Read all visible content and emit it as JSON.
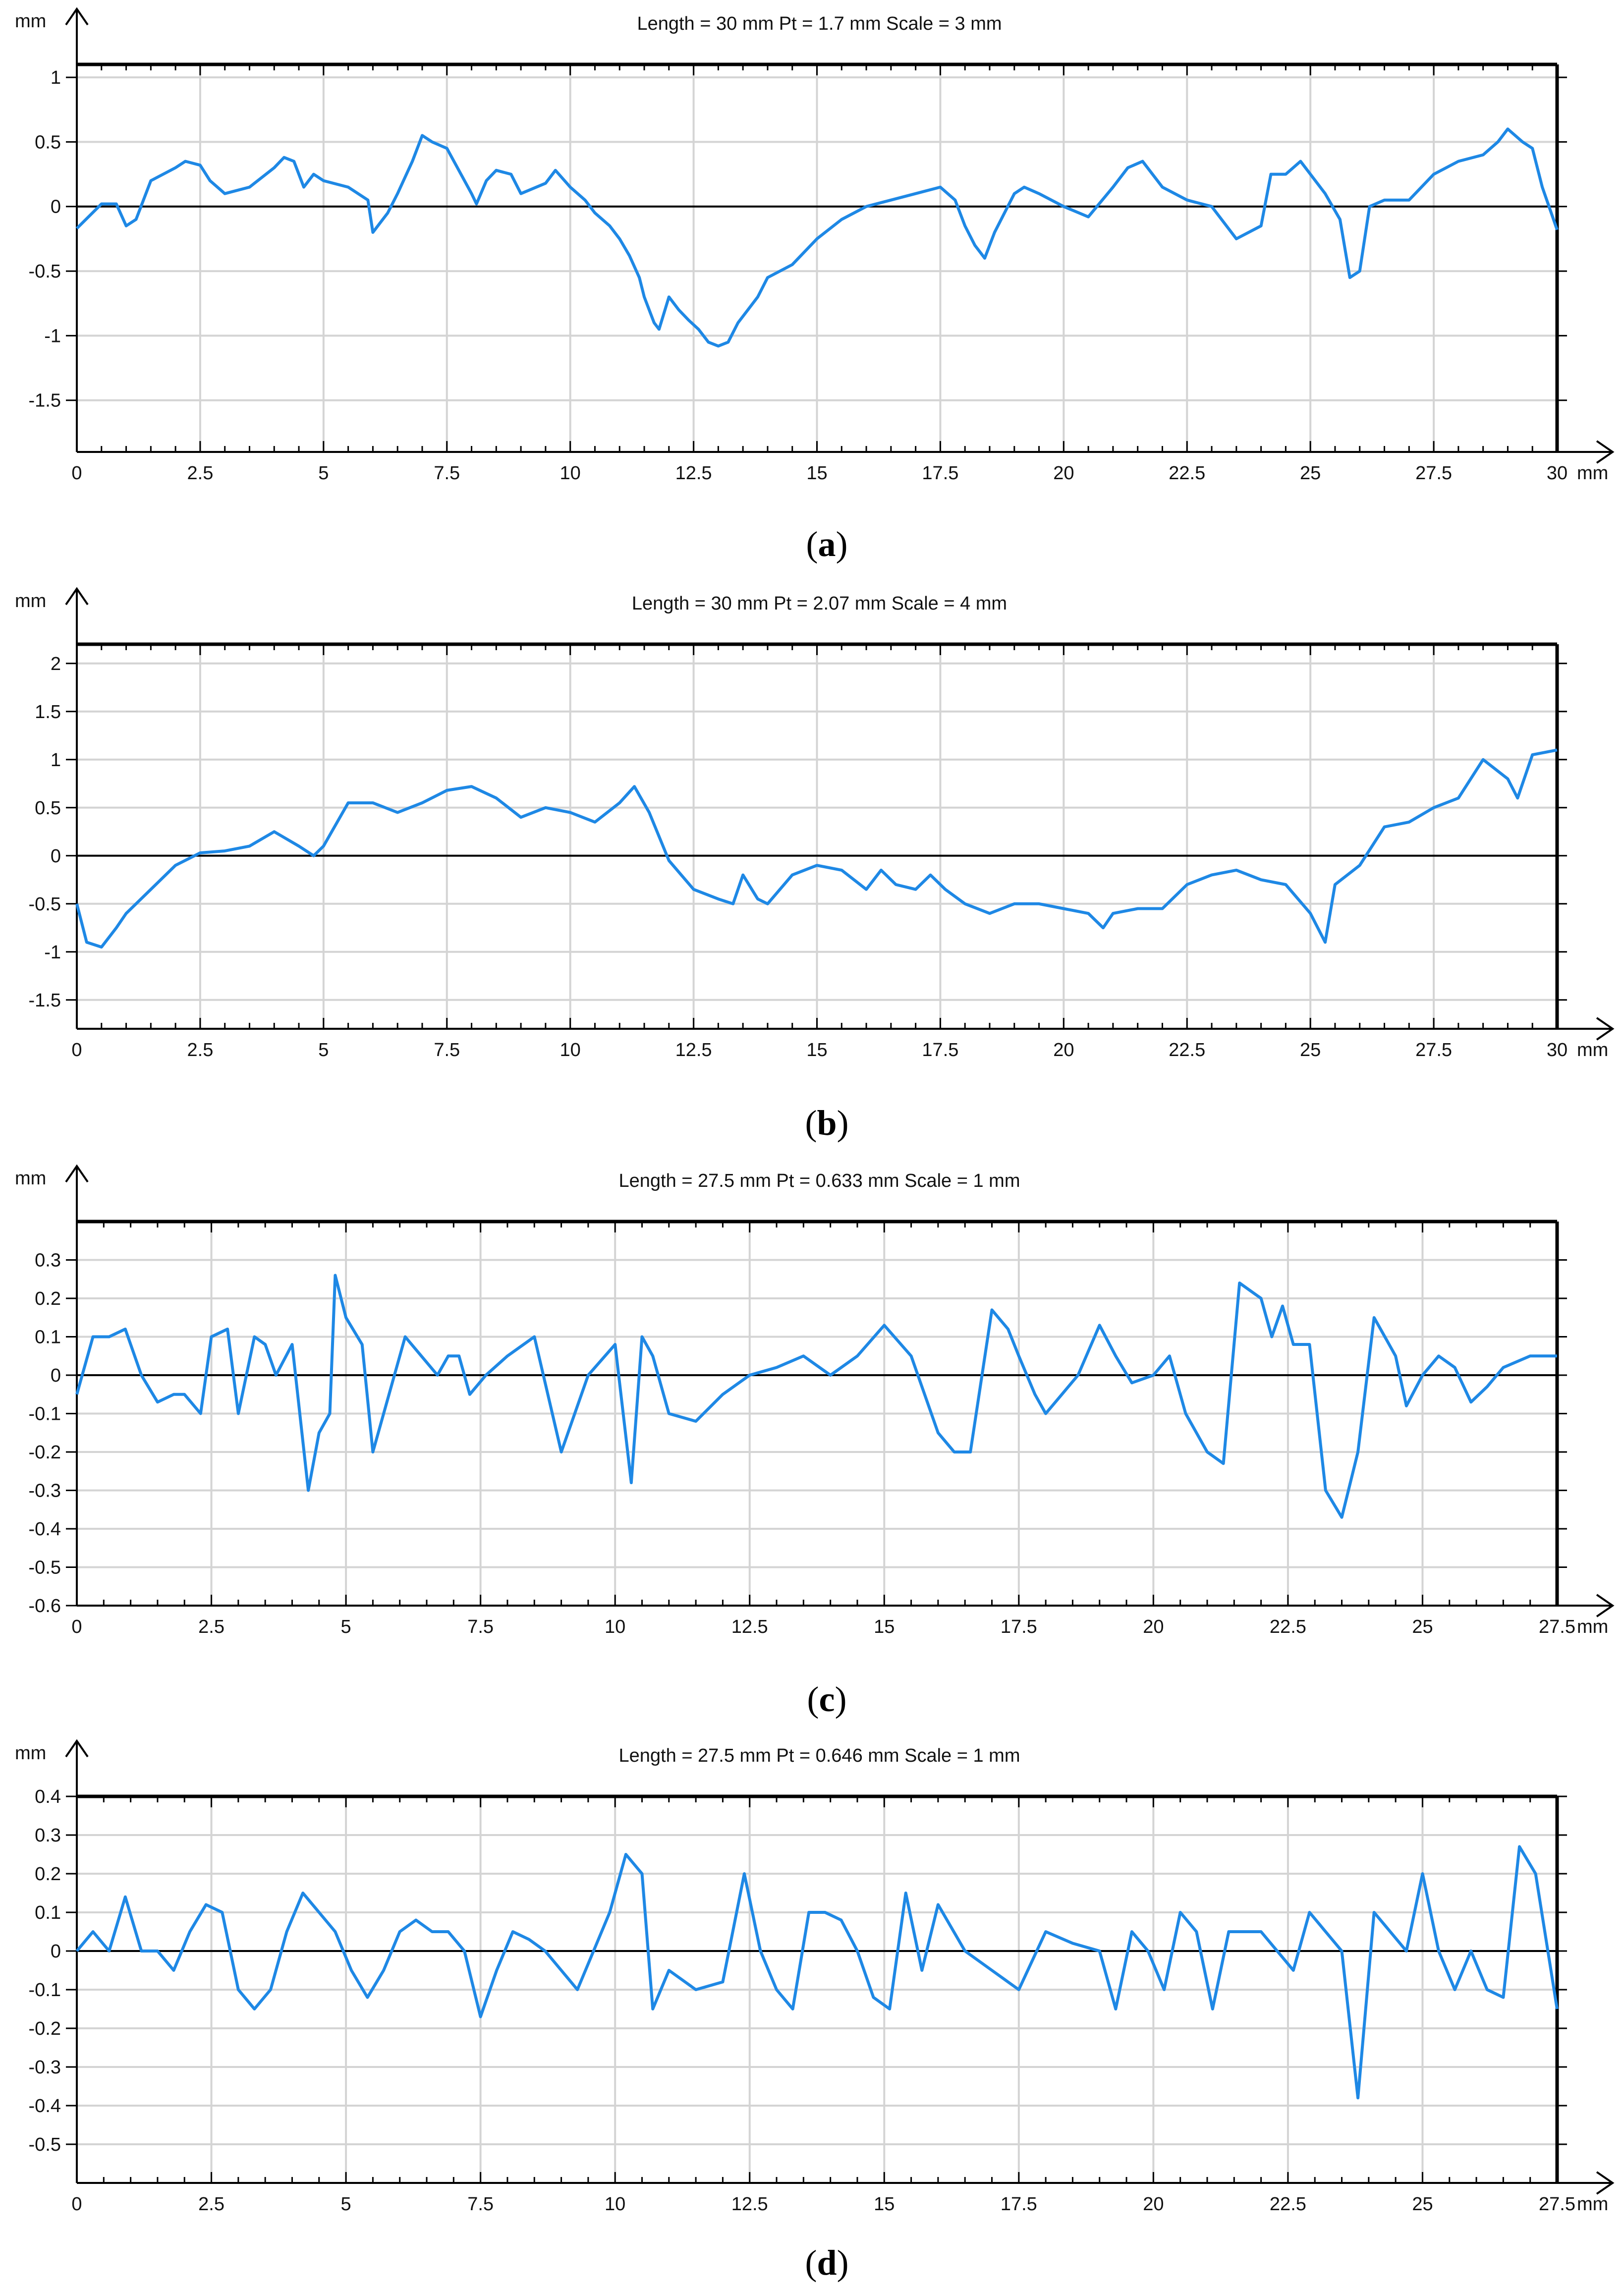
{
  "chart_data": [
    {
      "type": "line",
      "title": "Length = 30 mm  Pt = 1.7 mm  Scale = 3 mm",
      "caption_open": "(",
      "caption": "a",
      "caption_close": ")",
      "xlabel": "mm",
      "ylabel": "mm",
      "xlim": [
        0,
        30
      ],
      "ylim": [
        -1.9,
        1.1
      ],
      "xticks": [
        "0",
        "2.5",
        "5",
        "7.5",
        "10",
        "12.5",
        "15",
        "17.5",
        "20",
        "22.5",
        "25",
        "27.5",
        "30"
      ],
      "yticks": [
        "1",
        "0.5",
        "0",
        "-0.5",
        "-1",
        "-1.5"
      ],
      "ytick_values": [
        1,
        0.5,
        0,
        -0.5,
        -1,
        -1.5
      ],
      "grid": true,
      "line_color": "#1e88e5",
      "series": [
        {
          "x": [
            0,
            0.5,
            0.8,
            1.0,
            1.2,
            1.5,
            2.0,
            2.2,
            2.5,
            2.7,
            3.0,
            3.5,
            4.0,
            4.2,
            4.4,
            4.6,
            4.8,
            5.0,
            5.5,
            5.9,
            6.0,
            6.1,
            6.3,
            6.5,
            6.8,
            7.0,
            7.2,
            7.5,
            8.0,
            8.1,
            8.3,
            8.5,
            8.8,
            9.0,
            9.5,
            9.7,
            10.0,
            10.3,
            10.5,
            10.8,
            11.0,
            11.2,
            11.4,
            11.5,
            11.7,
            11.8,
            12.0,
            12.2,
            12.4,
            12.6,
            12.8,
            13.0,
            13.2,
            13.4,
            13.6,
            13.8,
            14.0,
            14.5,
            15.0,
            15.5,
            16.0,
            16.5,
            17.0,
            17.5,
            17.8,
            18.0,
            18.2,
            18.4,
            18.6,
            19.0,
            19.2,
            19.5,
            20.0,
            20.5,
            21.0,
            21.3,
            21.6,
            22.0,
            22.5,
            23.0,
            23.5,
            24.0,
            24.2,
            24.5,
            24.8,
            25.0,
            25.3,
            25.6,
            25.8,
            26.0,
            26.2,
            26.5,
            27.0,
            27.5,
            28.0,
            28.5,
            28.8,
            29.0,
            29.3,
            29.5,
            29.7,
            30.0
          ],
          "y": [
            -0.17,
            0.02,
            0.02,
            -0.15,
            -0.1,
            0.2,
            0.3,
            0.35,
            0.32,
            0.2,
            0.1,
            0.15,
            0.3,
            0.38,
            0.35,
            0.15,
            0.25,
            0.2,
            0.15,
            0.05,
            -0.2,
            -0.15,
            -0.05,
            0.1,
            0.35,
            0.55,
            0.5,
            0.45,
            0.1,
            0.02,
            0.2,
            0.28,
            0.25,
            0.1,
            0.18,
            0.28,
            0.15,
            0.05,
            -0.05,
            -0.15,
            -0.25,
            -0.38,
            -0.55,
            -0.7,
            -0.9,
            -0.95,
            -0.7,
            -0.8,
            -0.88,
            -0.95,
            -1.05,
            -1.08,
            -1.05,
            -0.9,
            -0.8,
            -0.7,
            -0.55,
            -0.45,
            -0.25,
            -0.1,
            0.0,
            0.05,
            0.1,
            0.15,
            0.05,
            -0.15,
            -0.3,
            -0.4,
            -0.2,
            0.1,
            0.15,
            0.1,
            0.0,
            -0.08,
            0.15,
            0.3,
            0.35,
            0.15,
            0.05,
            0.0,
            -0.25,
            -0.15,
            0.25,
            0.25,
            0.35,
            0.25,
            0.1,
            -0.1,
            -0.55,
            -0.5,
            0.0,
            0.05,
            0.05,
            0.25,
            0.35,
            0.4,
            0.5,
            0.6,
            0.5,
            0.45,
            0.15,
            -0.18
          ]
        }
      ]
    },
    {
      "type": "line",
      "title": "Length = 30 mm  Pt = 2.07 mm  Scale = 4 mm",
      "caption_open": "(",
      "caption": "b",
      "caption_close": ")",
      "xlabel": "mm",
      "ylabel": "mm",
      "xlim": [
        0,
        30
      ],
      "ylim": [
        -1.8,
        2.2
      ],
      "xticks": [
        "0",
        "2.5",
        "5",
        "7.5",
        "10",
        "12.5",
        "15",
        "17.5",
        "20",
        "22.5",
        "25",
        "27.5",
        "30"
      ],
      "yticks": [
        "2",
        "1.5",
        "1",
        "0.5",
        "0",
        "-0.5",
        "-1",
        "-1.5"
      ],
      "ytick_values": [
        2,
        1.5,
        1,
        0.5,
        0,
        -0.5,
        -1,
        -1.5
      ],
      "grid": true,
      "line_color": "#1e88e5",
      "series": [
        {
          "x": [
            0,
            0.2,
            0.5,
            0.8,
            1.0,
            1.5,
            2.0,
            2.5,
            3.0,
            3.5,
            4.0,
            4.5,
            4.8,
            5.0,
            5.5,
            6.0,
            6.5,
            7.0,
            7.5,
            8.0,
            8.5,
            9.0,
            9.5,
            10.0,
            10.5,
            11.0,
            11.3,
            11.6,
            12.0,
            12.5,
            13.0,
            13.3,
            13.5,
            13.8,
            14.0,
            14.5,
            15.0,
            15.5,
            16.0,
            16.3,
            16.6,
            17.0,
            17.3,
            17.6,
            18.0,
            18.5,
            19.0,
            19.5,
            20.0,
            20.5,
            20.8,
            21.0,
            21.5,
            22.0,
            22.5,
            23.0,
            23.5,
            24.0,
            24.5,
            25.0,
            25.3,
            25.5,
            26.0,
            26.5,
            27.0,
            27.5,
            28.0,
            28.5,
            29.0,
            29.2,
            29.5,
            30.0
          ],
          "y": [
            -0.5,
            -0.9,
            -0.95,
            -0.75,
            -0.6,
            -0.35,
            -0.1,
            0.03,
            0.05,
            0.1,
            0.25,
            0.1,
            0.0,
            0.1,
            0.55,
            0.55,
            0.45,
            0.55,
            0.68,
            0.72,
            0.6,
            0.4,
            0.5,
            0.45,
            0.35,
            0.55,
            0.72,
            0.45,
            -0.05,
            -0.35,
            -0.45,
            -0.5,
            -0.2,
            -0.45,
            -0.5,
            -0.2,
            -0.1,
            -0.15,
            -0.35,
            -0.15,
            -0.3,
            -0.35,
            -0.2,
            -0.35,
            -0.5,
            -0.6,
            -0.5,
            -0.5,
            -0.55,
            -0.6,
            -0.75,
            -0.6,
            -0.55,
            -0.55,
            -0.3,
            -0.2,
            -0.15,
            -0.25,
            -0.3,
            -0.6,
            -0.9,
            -0.3,
            -0.1,
            0.3,
            0.35,
            0.5,
            0.6,
            1.0,
            0.8,
            0.6,
            1.05,
            1.1
          ]
        }
      ]
    },
    {
      "type": "line",
      "title": "Length = 27.5 mm  Pt = 0.633 mm  Scale = 1 mm",
      "caption_open": "(",
      "caption": "c",
      "caption_close": ")",
      "xlabel": "mm",
      "ylabel": "mm",
      "xlim": [
        0,
        27.5
      ],
      "ylim": [
        -0.6,
        0.4
      ],
      "xticks": [
        "0",
        "2.5",
        "5",
        "7.5",
        "10",
        "12.5",
        "15",
        "17.5",
        "20",
        "22.5",
        "25",
        "27.5"
      ],
      "yticks": [
        "0.3",
        "0.2",
        "0.1",
        "0",
        "-0.1",
        "-0.2",
        "-0.3",
        "-0.4",
        "-0.5",
        "-0.6"
      ],
      "ytick_values": [
        0.3,
        0.2,
        0.1,
        0,
        -0.1,
        -0.2,
        -0.3,
        -0.4,
        -0.5,
        -0.6
      ],
      "grid": true,
      "line_color": "#1e88e5",
      "series": [
        {
          "x": [
            0,
            0.3,
            0.6,
            0.9,
            1.2,
            1.5,
            1.8,
            2.0,
            2.3,
            2.5,
            2.8,
            3.0,
            3.3,
            3.5,
            3.7,
            4.0,
            4.3,
            4.5,
            4.7,
            4.8,
            5.0,
            5.3,
            5.5,
            5.8,
            6.1,
            6.4,
            6.7,
            6.9,
            7.1,
            7.3,
            7.6,
            8.0,
            8.5,
            9.0,
            9.5,
            10.0,
            10.3,
            10.5,
            10.7,
            11.0,
            11.5,
            12.0,
            12.5,
            13.0,
            13.5,
            14.0,
            14.5,
            15.0,
            15.5,
            16.0,
            16.3,
            16.6,
            17.0,
            17.3,
            17.5,
            17.8,
            18.0,
            18.3,
            18.6,
            19.0,
            19.3,
            19.6,
            20.0,
            20.3,
            20.6,
            21.0,
            21.3,
            21.6,
            22.0,
            22.2,
            22.4,
            22.6,
            22.9,
            23.2,
            23.5,
            23.8,
            24.1,
            24.3,
            24.5,
            24.7,
            25.0,
            25.3,
            25.6,
            25.9,
            26.2,
            26.5,
            27.0,
            27.5
          ],
          "y": [
            -0.05,
            0.1,
            0.1,
            0.12,
            0.0,
            -0.07,
            -0.05,
            -0.05,
            -0.1,
            0.1,
            0.12,
            -0.1,
            0.1,
            0.08,
            0.0,
            0.08,
            -0.3,
            -0.15,
            -0.1,
            0.26,
            0.15,
            0.08,
            -0.2,
            -0.05,
            0.1,
            0.05,
            0.0,
            0.05,
            0.05,
            -0.05,
            0.0,
            0.05,
            0.1,
            -0.2,
            0.0,
            0.08,
            -0.28,
            0.1,
            0.05,
            -0.1,
            -0.12,
            -0.05,
            0.0,
            0.02,
            0.05,
            0.0,
            0.05,
            0.13,
            0.05,
            -0.15,
            -0.2,
            -0.2,
            0.17,
            0.12,
            0.05,
            -0.05,
            -0.1,
            -0.05,
            0.0,
            0.13,
            0.05,
            -0.02,
            0.0,
            0.05,
            -0.1,
            -0.2,
            -0.23,
            0.24,
            0.2,
            0.1,
            0.18,
            0.08,
            0.08,
            -0.3,
            -0.37,
            -0.2,
            0.15,
            0.1,
            0.05,
            -0.08,
            0.0,
            0.05,
            0.02,
            -0.07,
            -0.03,
            0.02,
            0.05,
            0.05
          ]
        }
      ]
    },
    {
      "type": "line",
      "title": "Length = 27.5 mm  Pt = 0.646 mm  Scale = 1 mm",
      "caption_open": "(",
      "caption": "d",
      "caption_close": ")",
      "xlabel": "mm",
      "ylabel": "mm",
      "xlim": [
        0,
        27.5
      ],
      "ylim": [
        -0.6,
        0.4
      ],
      "xticks": [
        "0",
        "2.5",
        "5",
        "7.5",
        "10",
        "12.5",
        "15",
        "17.5",
        "20",
        "22.5",
        "25",
        "27.5"
      ],
      "yticks": [
        "0.4",
        "0.3",
        "0.2",
        "0.1",
        "0",
        "-0.1",
        "-0.2",
        "-0.3",
        "-0.4",
        "-0.5"
      ],
      "ytick_values": [
        0.4,
        0.3,
        0.2,
        0.1,
        0,
        -0.1,
        -0.2,
        -0.3,
        -0.4,
        -0.5
      ],
      "grid": true,
      "line_color": "#1e88e5",
      "series": [
        {
          "x": [
            0,
            0.3,
            0.6,
            0.9,
            1.2,
            1.5,
            1.8,
            2.1,
            2.4,
            2.7,
            3.0,
            3.3,
            3.6,
            3.9,
            4.2,
            4.5,
            4.8,
            5.1,
            5.4,
            5.7,
            6.0,
            6.3,
            6.6,
            6.9,
            7.2,
            7.5,
            7.8,
            8.1,
            8.4,
            8.7,
            9.0,
            9.3,
            9.6,
            9.9,
            10.2,
            10.5,
            10.7,
            11.0,
            11.5,
            12.0,
            12.4,
            12.7,
            13.0,
            13.3,
            13.6,
            13.9,
            14.2,
            14.5,
            14.8,
            15.1,
            15.4,
            15.7,
            16.0,
            16.5,
            17.0,
            17.5,
            18.0,
            18.5,
            19.0,
            19.3,
            19.6,
            19.9,
            20.2,
            20.5,
            20.8,
            21.1,
            21.4,
            21.7,
            22.0,
            22.3,
            22.6,
            22.9,
            23.2,
            23.5,
            23.8,
            24.1,
            24.4,
            24.7,
            25.0,
            25.3,
            25.6,
            25.9,
            26.2,
            26.5,
            26.8,
            27.1,
            27.5
          ],
          "y": [
            0.0,
            0.05,
            0.0,
            0.14,
            0.0,
            0.0,
            -0.05,
            0.05,
            0.12,
            0.1,
            -0.1,
            -0.15,
            -0.1,
            0.05,
            0.15,
            0.1,
            0.05,
            -0.05,
            -0.12,
            -0.05,
            0.05,
            0.08,
            0.05,
            0.05,
            0.0,
            -0.17,
            -0.05,
            0.05,
            0.03,
            0.0,
            -0.05,
            -0.1,
            0.0,
            0.1,
            0.25,
            0.2,
            -0.15,
            -0.05,
            -0.1,
            -0.08,
            0.2,
            0.0,
            -0.1,
            -0.15,
            0.1,
            0.1,
            0.08,
            0.0,
            -0.12,
            -0.15,
            0.15,
            -0.05,
            0.12,
            0.0,
            -0.05,
            -0.1,
            0.05,
            0.02,
            0.0,
            -0.15,
            0.05,
            0.0,
            -0.1,
            0.1,
            0.05,
            -0.15,
            0.05,
            0.05,
            0.05,
            0.0,
            -0.05,
            0.1,
            0.05,
            0.0,
            -0.38,
            0.1,
            0.05,
            0.0,
            0.2,
            0.0,
            -0.1,
            0.0,
            -0.1,
            -0.12,
            0.27,
            0.2,
            -0.15
          ]
        }
      ]
    }
  ]
}
